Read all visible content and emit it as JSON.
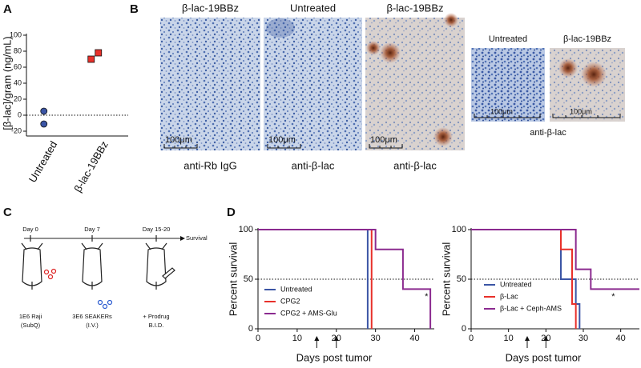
{
  "panel_labels": [
    "A",
    "B",
    "C",
    "D"
  ],
  "images": {
    "columns": [
      {
        "title": "β-lac-19BBz",
        "scale": "100μm",
        "stain": "anti-Rb IgG"
      },
      {
        "title": "Untreated",
        "scale": "100μm",
        "stain": "anti-β-lac"
      },
      {
        "title": "β-lac-19BBz",
        "scale": "100μm",
        "stain": "anti-β-lac"
      }
    ],
    "insets": [
      {
        "title": "Untreated",
        "scale": "100μm"
      },
      {
        "title": "β-lac-19BBz",
        "scale": "100μm"
      }
    ],
    "inset_stain": "anti-β-lac"
  },
  "timeline": {
    "days": [
      "Day 0",
      "Day 7",
      "Day 15-20"
    ],
    "end": "Survival",
    "steps": [
      [
        "1E6 Raji",
        "(SubQ)"
      ],
      [
        "3E6 SEAKERs",
        "(I.V.)"
      ],
      [
        "+ Prodrug",
        "B.I.D."
      ]
    ]
  },
  "chart_data": [
    {
      "type": "strip",
      "ylabel": "[β-lac]/gram (ng/mL)",
      "categories": [
        "Untreated",
        "β-lac-19BBz"
      ],
      "values": [
        [
          5,
          -11
        ],
        [
          70,
          78
        ]
      ],
      "colors": [
        "#3b55a5",
        "#e8302a"
      ],
      "markers": [
        "circle",
        "square"
      ],
      "ylim": [
        -20,
        100
      ],
      "yticks": [
        -20,
        0,
        20,
        40,
        60,
        80,
        100
      ],
      "reference_line": 0
    },
    {
      "type": "step",
      "xlabel": "Days post tumor",
      "ylabel": "Percent survival",
      "xlim": [
        0,
        45
      ],
      "xticks": [
        0,
        10,
        20,
        30,
        40
      ],
      "ylim": [
        0,
        100
      ],
      "yticks": [
        0,
        50,
        100
      ],
      "reference_line": 50,
      "treatment_days": [
        15,
        20
      ],
      "series": [
        {
          "name": "Untreated",
          "color": "#3b55a5",
          "x": [
            0,
            28
          ],
          "values": [
            100,
            0
          ]
        },
        {
          "name": "CPG2",
          "color": "#e8302a",
          "x": [
            0,
            29
          ],
          "values": [
            100,
            0
          ]
        },
        {
          "name": "CPG2 + AMS-Glu",
          "color": "#8b2a8f",
          "x": [
            0,
            30,
            37,
            44
          ],
          "values": [
            100,
            80,
            40,
            0
          ]
        }
      ],
      "annotations": [
        {
          "text": "*",
          "x": 43,
          "y": 32
        }
      ]
    },
    {
      "type": "step",
      "xlabel": "Days post tumor",
      "ylabel": "Percent survival",
      "xlim": [
        0,
        45
      ],
      "xticks": [
        0,
        10,
        20,
        30,
        40
      ],
      "ylim": [
        0,
        100
      ],
      "yticks": [
        0,
        50,
        100
      ],
      "reference_line": 50,
      "treatment_days": [
        15,
        20
      ],
      "series": [
        {
          "name": "Untreated",
          "color": "#3b55a5",
          "x": [
            0,
            24,
            28,
            29
          ],
          "values": [
            100,
            50,
            25,
            0
          ]
        },
        {
          "name": "β-Lac",
          "color": "#e8302a",
          "x": [
            0,
            24,
            27,
            28
          ],
          "values": [
            100,
            80,
            25,
            0
          ]
        },
        {
          "name": "β-Lac + Ceph-AMS",
          "color": "#8b2a8f",
          "x": [
            0,
            28,
            32,
            45
          ],
          "values": [
            100,
            60,
            40,
            40
          ]
        }
      ],
      "annotations": [
        {
          "text": "*",
          "x": 38,
          "y": 32
        }
      ]
    }
  ]
}
